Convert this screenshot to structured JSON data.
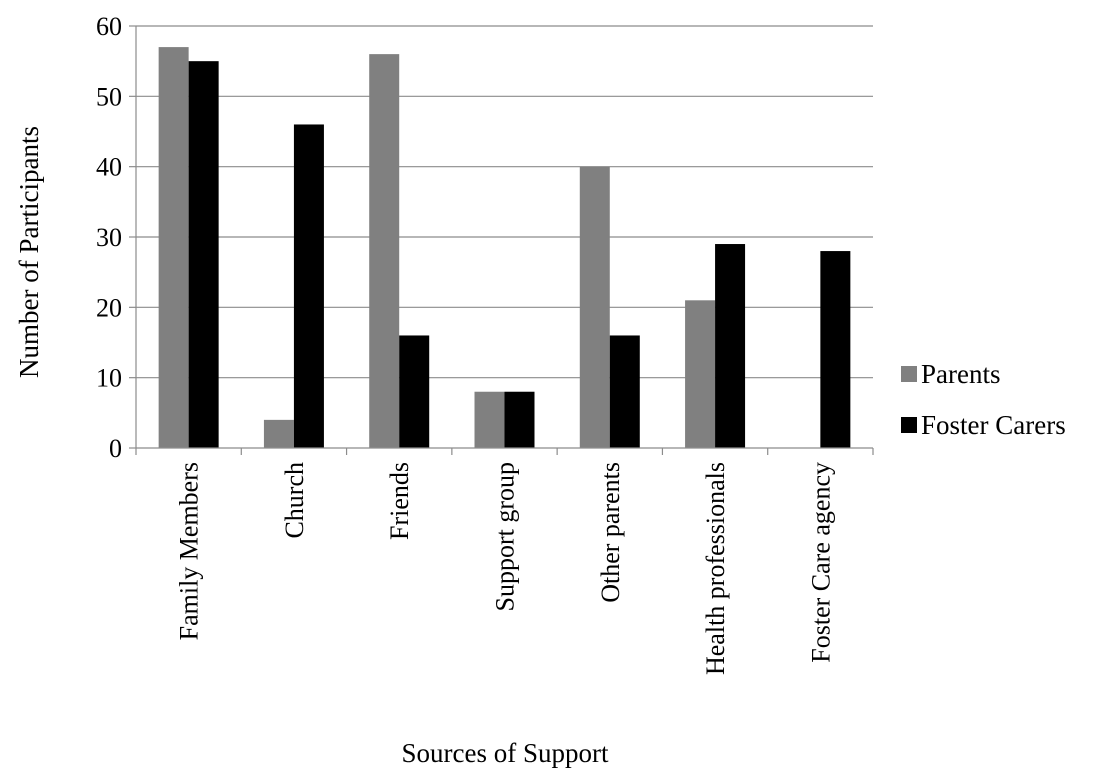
{
  "chart_data": {
    "type": "bar",
    "title": "",
    "xlabel": "Sources of Support",
    "ylabel": "Number of Participants",
    "categories": [
      "Family Members",
      "Church",
      "Friends",
      "Support group",
      "Other parents",
      "Health professionals",
      "Foster Care agency"
    ],
    "series": [
      {
        "name": "Parents",
        "color": "#808080",
        "values": [
          57,
          4,
          56,
          8,
          40,
          21,
          0
        ]
      },
      {
        "name": "Foster Carers",
        "color": "#000000",
        "values": [
          55,
          46,
          16,
          8,
          16,
          29,
          28
        ]
      }
    ],
    "ylim": [
      0,
      60
    ],
    "yticks": [
      0,
      10,
      20,
      30,
      40,
      50,
      60
    ],
    "grid": true,
    "legend_position": "right"
  }
}
